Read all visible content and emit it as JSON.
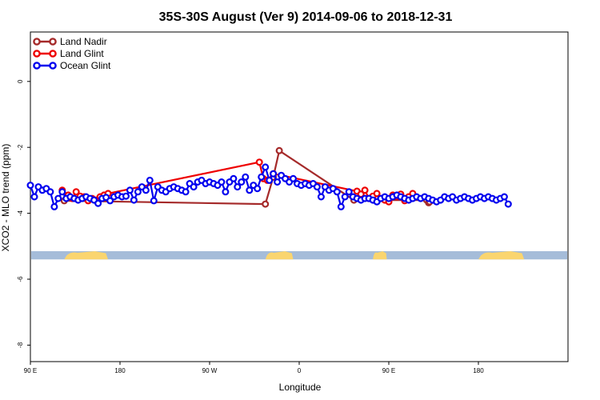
{
  "chart_data": {
    "type": "line",
    "title": "35S-30S August (Ver 9)   2014-09-06 to 2018-12-31",
    "xlabel": "Longitude",
    "ylabel": "XCO2 - MLO trend (ppm)",
    "xlim": [
      -90,
      180
    ],
    "ylim": [
      -8.5,
      1.5
    ],
    "x_ticks": [
      {
        "value": -90,
        "label": "90 E"
      },
      {
        "value": -45,
        "label": "180"
      },
      {
        "value": 0,
        "label": "90 W"
      },
      {
        "value": 45,
        "label": "0"
      },
      {
        "value": 90,
        "label": "90 E"
      },
      {
        "value": 135,
        "label": "180"
      }
    ],
    "y_ticks": [
      {
        "value": 0,
        "label": "0"
      },
      {
        "value": -2,
        "label": "-2"
      },
      {
        "value": -4,
        "label": "-4"
      },
      {
        "value": -6,
        "label": "-6"
      },
      {
        "value": -8,
        "label": "-8"
      }
    ],
    "legend_position": "top-left",
    "map_strip": {
      "y_top": -5.15,
      "y_bottom": -5.4,
      "ocean_color": "#a5bcd9",
      "land_color": "#fad56f",
      "land_segments": [
        [
          -73,
          -51
        ],
        [
          28,
          42
        ],
        [
          82,
          89
        ],
        [
          135,
          158
        ]
      ]
    },
    "series": [
      {
        "name": "Land Nadir",
        "color": "#a52a2a",
        "x": [
          -73,
          28,
          32,
          35,
          72.5,
          109,
          110,
          110.5
        ],
        "y": [
          -3.62,
          -3.72,
          -2.9,
          -2.1,
          -3.6,
          -3.6,
          -3.68,
          -3.65
        ]
      },
      {
        "name": "Land Glint",
        "color": "#ee0000",
        "x": [
          -74,
          -71,
          -69,
          -67,
          -65,
          -63,
          -61,
          -59,
          -57,
          -55,
          -53,
          -51,
          25,
          27,
          29,
          32,
          74,
          76,
          78,
          80,
          82,
          84,
          86,
          88,
          90,
          92,
          94,
          96,
          98,
          100,
          102
        ],
        "y": [
          -3.3,
          -3.45,
          -3.55,
          -3.35,
          -3.48,
          -3.5,
          -3.62,
          -3.55,
          -3.6,
          -3.5,
          -3.45,
          -3.4,
          -2.45,
          -2.95,
          -3.0,
          -2.8,
          -3.33,
          -3.42,
          -3.3,
          -3.55,
          -3.48,
          -3.4,
          -3.55,
          -3.6,
          -3.65,
          -3.45,
          -3.5,
          -3.42,
          -3.62,
          -3.5,
          -3.4
        ]
      },
      {
        "name": "Ocean Glint",
        "color": "#0000ee",
        "x": [
          -90,
          -88,
          -86,
          -84,
          -82,
          -80,
          -78,
          -76,
          -74,
          -72,
          -70,
          -68,
          -66,
          -64,
          -62,
          -60,
          -58,
          -56,
          -54,
          -52,
          -50,
          -48,
          -46,
          -44,
          -42,
          -40,
          -38,
          -36,
          -34,
          -32,
          -30,
          -28,
          -26,
          -24,
          -22,
          -20,
          -18,
          -16,
          -14,
          -12,
          -10,
          -8,
          -6,
          -4,
          -2,
          0,
          2,
          4,
          6,
          8,
          10,
          12,
          14,
          16,
          18,
          20,
          22,
          24,
          26,
          28,
          30,
          32,
          34,
          36,
          38,
          40,
          42,
          44,
          46,
          48,
          50,
          52,
          54,
          56,
          58,
          60,
          62,
          64,
          66,
          68,
          70,
          72,
          74,
          76,
          78,
          80,
          82,
          84,
          86,
          88,
          90,
          92,
          94,
          96,
          98,
          100,
          102,
          104,
          106,
          108,
          110,
          112,
          114,
          116,
          118,
          120,
          122,
          124,
          126,
          128,
          130,
          132,
          134,
          136,
          138,
          140,
          142,
          144,
          146,
          148,
          150
        ],
        "y": [
          -3.15,
          -3.5,
          -3.2,
          -3.3,
          -3.25,
          -3.35,
          -3.8,
          -3.55,
          -3.35,
          -3.55,
          -3.5,
          -3.55,
          -3.6,
          -3.55,
          -3.5,
          -3.55,
          -3.6,
          -3.7,
          -3.55,
          -3.52,
          -3.62,
          -3.5,
          -3.45,
          -3.5,
          -3.48,
          -3.3,
          -3.6,
          -3.35,
          -3.2,
          -3.3,
          -3.0,
          -3.62,
          -3.2,
          -3.3,
          -3.35,
          -3.25,
          -3.2,
          -3.25,
          -3.3,
          -3.35,
          -3.1,
          -3.2,
          -3.05,
          -3.0,
          -3.1,
          -3.05,
          -3.1,
          -3.15,
          -3.05,
          -3.35,
          -3.05,
          -2.95,
          -3.2,
          -3.05,
          -2.9,
          -3.3,
          -3.15,
          -3.25,
          -2.9,
          -2.6,
          -3.0,
          -2.8,
          -3.05,
          -2.85,
          -2.95,
          -3.05,
          -2.95,
          -3.1,
          -3.15,
          -3.1,
          -3.15,
          -3.1,
          -3.2,
          -3.5,
          -3.2,
          -3.3,
          -3.25,
          -3.35,
          -3.8,
          -3.5,
          -3.35,
          -3.5,
          -3.55,
          -3.6,
          -3.55,
          -3.55,
          -3.6,
          -3.65,
          -3.55,
          -3.5,
          -3.55,
          -3.5,
          -3.45,
          -3.5,
          -3.55,
          -3.6,
          -3.55,
          -3.5,
          -3.55,
          -3.5,
          -3.55,
          -3.6,
          -3.65,
          -3.6,
          -3.5,
          -3.55,
          -3.5,
          -3.6,
          -3.55,
          -3.5,
          -3.55,
          -3.6,
          -3.55,
          -3.5,
          -3.55,
          -3.5,
          -3.55,
          -3.6,
          -3.55,
          -3.5,
          -3.72
        ]
      }
    ]
  }
}
